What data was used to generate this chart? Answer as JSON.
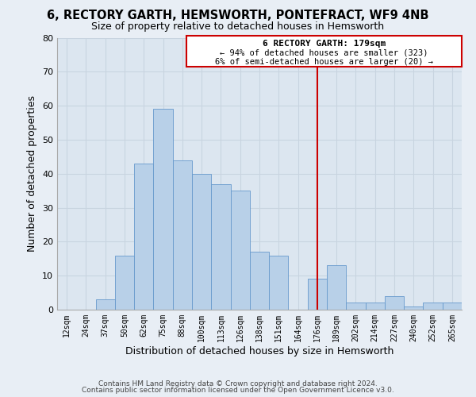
{
  "title": "6, RECTORY GARTH, HEMSWORTH, PONTEFRACT, WF9 4NB",
  "subtitle": "Size of property relative to detached houses in Hemsworth",
  "xlabel": "Distribution of detached houses by size in Hemsworth",
  "ylabel": "Number of detached properties",
  "bar_color": "#b8d0e8",
  "bar_edge_color": "#6699cc",
  "categories": [
    "12sqm",
    "24sqm",
    "37sqm",
    "50sqm",
    "62sqm",
    "75sqm",
    "88sqm",
    "100sqm",
    "113sqm",
    "126sqm",
    "138sqm",
    "151sqm",
    "164sqm",
    "176sqm",
    "189sqm",
    "202sqm",
    "214sqm",
    "227sqm",
    "240sqm",
    "252sqm",
    "265sqm"
  ],
  "values": [
    0,
    0,
    3,
    16,
    43,
    59,
    44,
    40,
    37,
    35,
    17,
    16,
    0,
    9,
    13,
    2,
    2,
    4,
    1,
    2,
    2
  ],
  "ylim": [
    0,
    80
  ],
  "yticks": [
    0,
    10,
    20,
    30,
    40,
    50,
    60,
    70,
    80
  ],
  "vline_idx": 13,
  "annotation_title": "6 RECTORY GARTH: 179sqm",
  "annotation_line1": "← 94% of detached houses are smaller (323)",
  "annotation_line2": "6% of semi-detached houses are larger (20) →",
  "footer1": "Contains HM Land Registry data © Crown copyright and database right 2024.",
  "footer2": "Contains public sector information licensed under the Open Government Licence v3.0.",
  "background_color": "#e8eef5",
  "plot_bg_color": "#dce6f0",
  "grid_color": "#c8d4e0",
  "annotation_box_edge": "#cc0000",
  "vline_color": "#cc0000"
}
